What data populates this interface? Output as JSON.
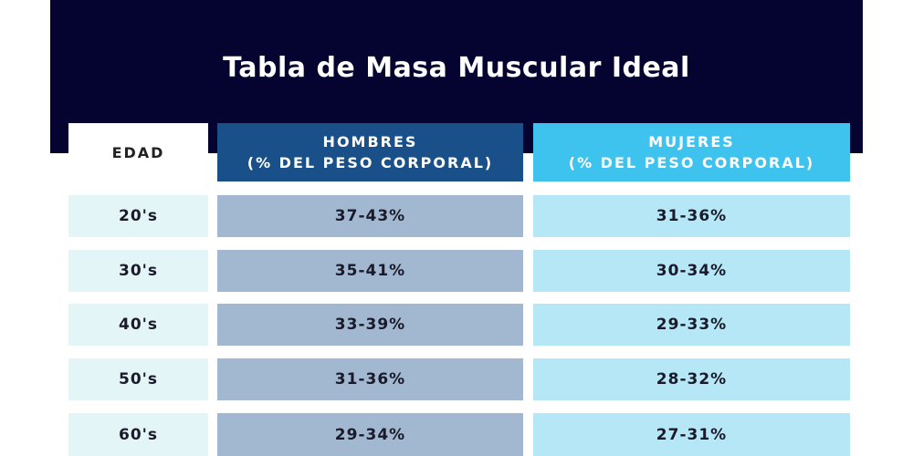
{
  "title": "Tabla de Masa Muscular Ideal",
  "headers": {
    "age": "EDAD",
    "men_line1": "HOMBRES",
    "men_line2": "(% DEL PESO CORPORAL)",
    "women_line1": "MUJERES",
    "women_line2": "(% DEL PESO CORPORAL)"
  },
  "rows": [
    {
      "age": "20's",
      "men": "37-43%",
      "women": "31-36%"
    },
    {
      "age": "30's",
      "men": "35-41%",
      "women": "30-34%"
    },
    {
      "age": "40's",
      "men": "33-39%",
      "women": "29-33%"
    },
    {
      "age": "50's",
      "men": "31-36%",
      "women": "28-32%"
    },
    {
      "age": "60's",
      "men": "29-34%",
      "women": "27-31%"
    }
  ],
  "colors": {
    "banner": "#050431",
    "men_header": "#1a5089",
    "women_header": "#3ec3ee",
    "age_cell": "#e3f5f6",
    "men_cell": "#a2b8d1",
    "women_cell": "#b6e7f7"
  }
}
